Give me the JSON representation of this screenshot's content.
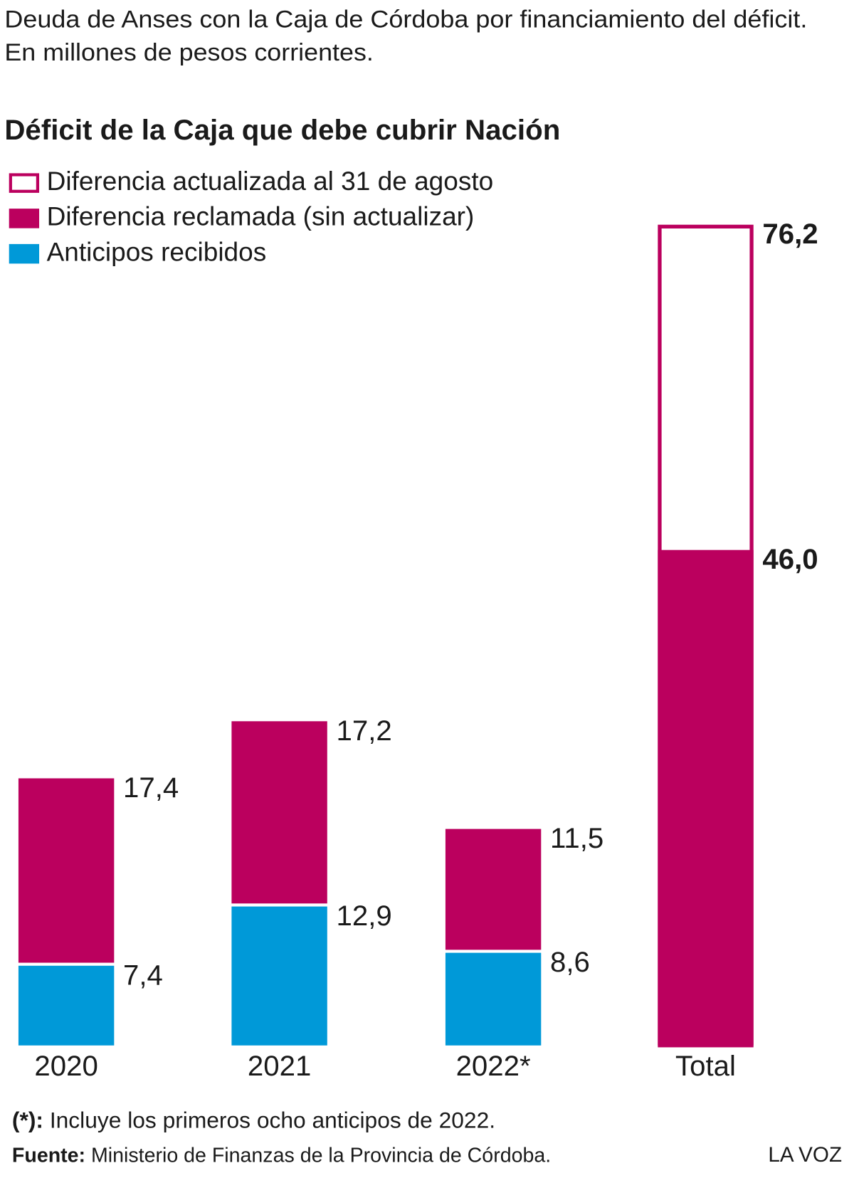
{
  "chart_data": {
    "type": "bar",
    "title": "Deuda de Anses con la Caja de Córdoba por financiamiento del déficit.",
    "subtitle": "En millones de pesos corrientes.",
    "heading": "Déficit de la Caja que debe cubrir Nación",
    "categories": [
      "2020",
      "2021",
      "2022*",
      "Total"
    ],
    "series": [
      {
        "name": "Anticipos recibidos",
        "color": "#0099d8",
        "values": [
          7.4,
          12.9,
          8.6,
          null
        ],
        "value_labels": [
          "7,4",
          "12,9",
          "8,6",
          null
        ]
      },
      {
        "name": "Diferencia reclamada (sin actualizar)",
        "color": "#bb005e",
        "values": [
          17.4,
          17.2,
          11.5,
          46.0
        ],
        "value_labels": [
          "17,4",
          "17,2",
          "11,5",
          "46,0"
        ]
      },
      {
        "name": "Diferencia actualizada al 31 de agosto",
        "color": "#bb005e",
        "outline": true,
        "values": [
          null,
          null,
          null,
          76.2
        ],
        "value_labels": [
          null,
          null,
          null,
          "76,2"
        ]
      }
    ],
    "stacked": true,
    "notes": [
      {
        "label": "(*):",
        "text": "Incluye los primeros ocho anticipos de 2022."
      },
      {
        "label": "Fuente:",
        "text": "Ministerio de Finanzas de la Provincia de Córdoba."
      }
    ],
    "credit": "LA VOZ"
  }
}
